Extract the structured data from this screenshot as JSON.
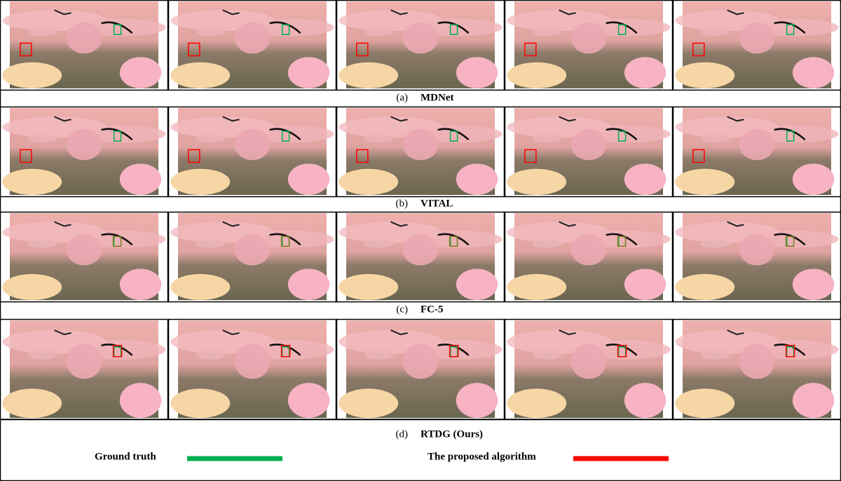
{
  "rows": [
    {
      "label": "(a)",
      "method": "MDNet"
    },
    {
      "label": "(b)",
      "method": "VITAL"
    },
    {
      "label": "(c)",
      "method": "FC-5"
    },
    {
      "label": "(d)",
      "method": "RTDG (Ours)"
    }
  ],
  "legend": [
    {
      "name": "Ground truth",
      "color": "#00b050"
    },
    {
      "name": "The proposed algorithm",
      "color": "#ff0000"
    }
  ]
}
